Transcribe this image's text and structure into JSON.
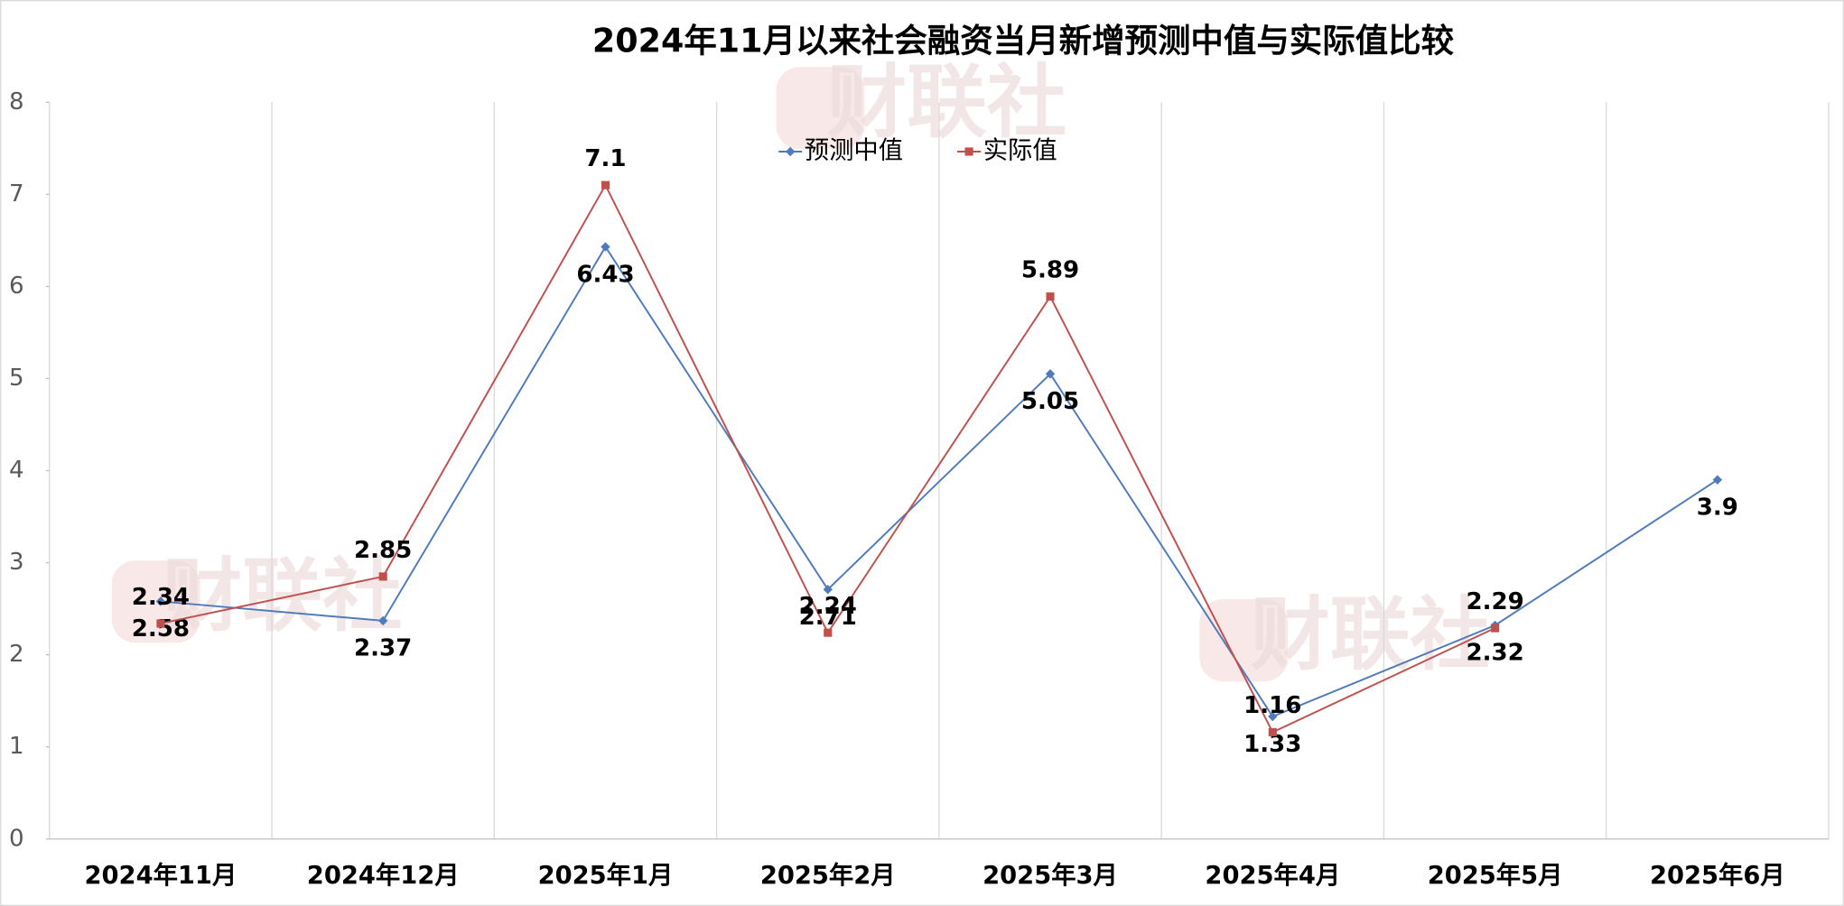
{
  "chart_data": {
    "type": "line",
    "title": "2024年11月以来社会融资当月新增预测中值与实际值比较",
    "watermark": "财联社",
    "categories": [
      "2024年11月",
      "2024年12月",
      "2025年1月",
      "2025年2月",
      "2025年3月",
      "2025年4月",
      "2025年5月",
      "2025年6月"
    ],
    "series": [
      {
        "name": "预测中值",
        "color": "#4f7bbd",
        "marker": "diamond",
        "values": [
          2.58,
          2.37,
          6.43,
          2.71,
          5.05,
          1.33,
          2.32,
          3.9
        ]
      },
      {
        "name": "实际值",
        "color": "#c0504d",
        "marker": "square",
        "values": [
          2.34,
          2.85,
          7.1,
          2.24,
          5.89,
          1.16,
          2.29,
          null
        ]
      }
    ],
    "ylim": [
      0,
      8
    ],
    "yticks": [
      0,
      1,
      2,
      3,
      4,
      5,
      6,
      7,
      8
    ],
    "grid": "x",
    "legend": "top"
  }
}
